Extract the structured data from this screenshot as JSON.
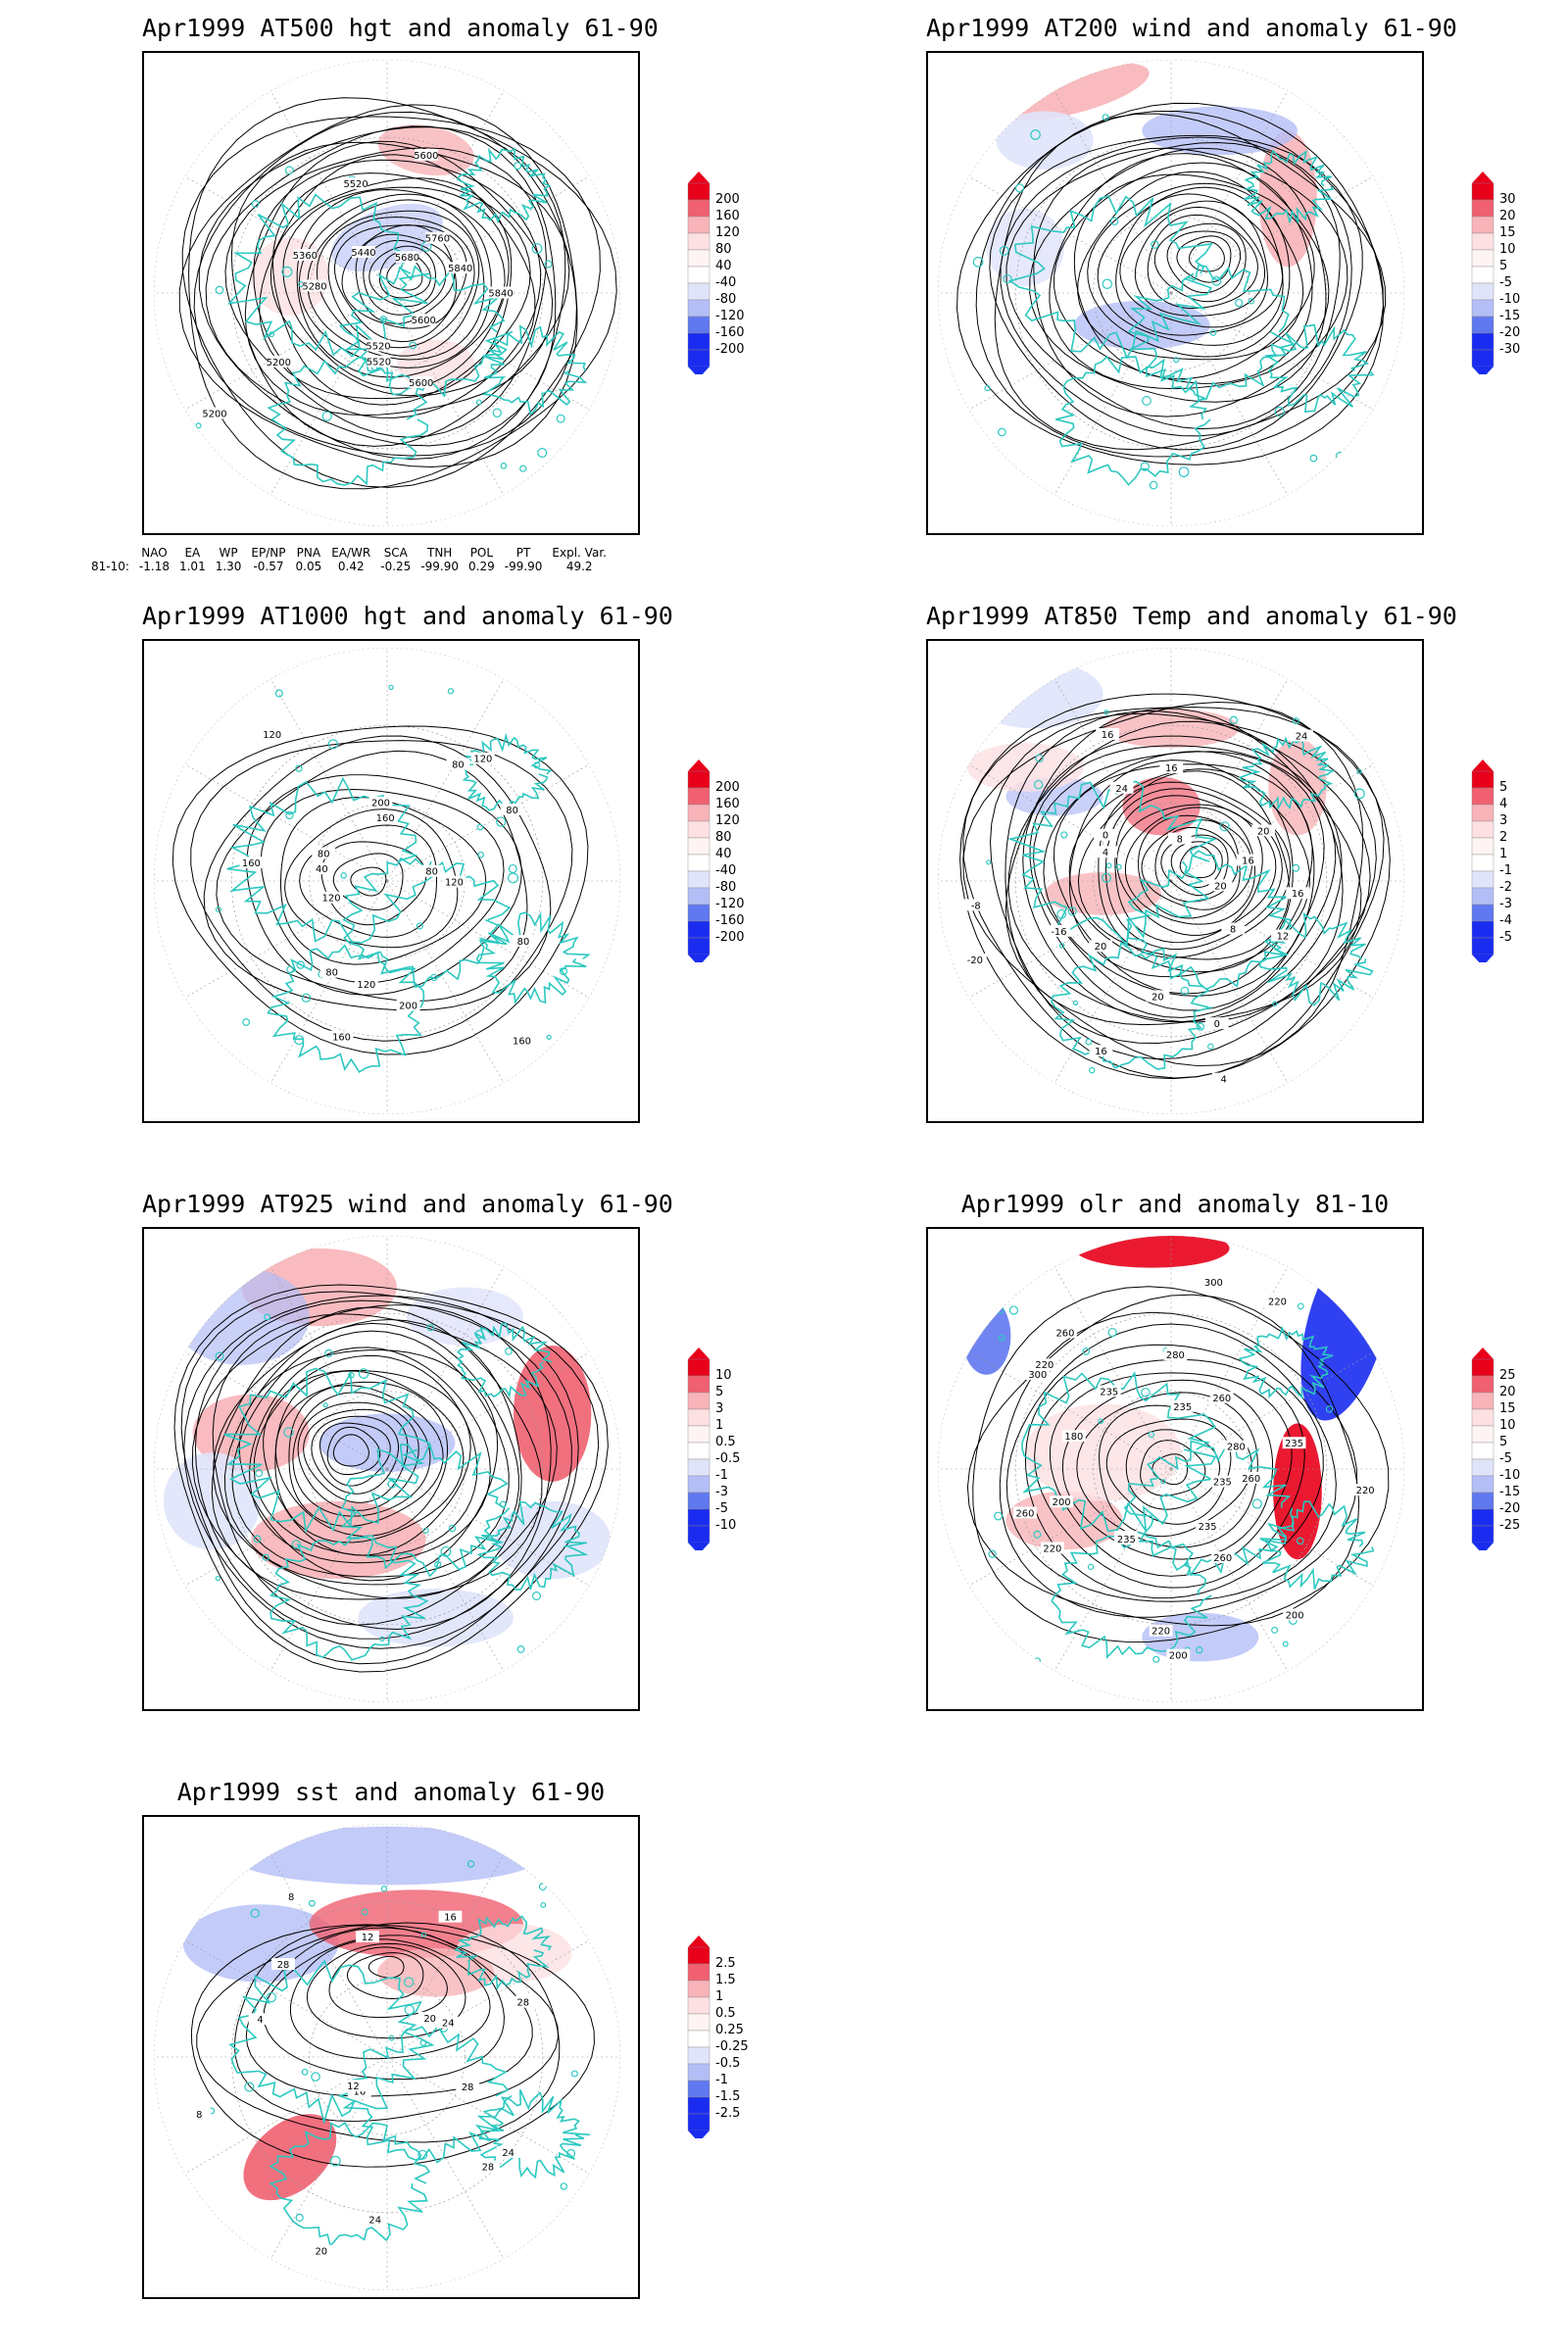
{
  "panels": [
    {
      "id": "at500",
      "title": "Apr1999 AT500 hgt and anomaly 61-90",
      "colorbar": [
        "200",
        "160",
        "120",
        "80",
        "40",
        "-40",
        "-80",
        "-120",
        "-160",
        "-200"
      ],
      "scheme": "rb",
      "contour_labels": [
        "5840",
        "5600",
        "5600",
        "5520",
        "5520",
        "5200",
        "5200",
        "5280",
        "5360",
        "5440",
        "5520",
        "5600",
        "5680",
        "5760",
        "5840"
      ]
    },
    {
      "id": "at200",
      "title": "Apr1999 AT200 wind and anomaly 61-90",
      "colorbar": [
        "30",
        "20",
        "15",
        "10",
        "5",
        "-5",
        "-10",
        "-15",
        "-20",
        "-30"
      ],
      "scheme": "rb"
    },
    {
      "id": "at1000",
      "title": "Apr1999 AT1000 hgt and anomaly 61-90",
      "colorbar": [
        "200",
        "160",
        "120",
        "80",
        "40",
        "-40",
        "-80",
        "-120",
        "-160",
        "-200"
      ],
      "scheme": "rb",
      "contour_labels": [
        "120",
        "80",
        "160",
        "200",
        "160",
        "120",
        "80",
        "120",
        "160",
        "40",
        "80",
        "120",
        "160",
        "200",
        "80",
        "120",
        "80",
        "80"
      ]
    },
    {
      "id": "at850",
      "title": "Apr1999 AT850 Temp and anomaly 61-90",
      "colorbar": [
        "5",
        "4",
        "3",
        "2",
        "1",
        "-1",
        "-2",
        "-3",
        "-4",
        "-5"
      ],
      "scheme": "rb",
      "contour_labels": [
        "16",
        "12",
        "8",
        "4",
        "0",
        "20",
        "16",
        "20",
        "-20",
        "-16",
        "-8",
        "4",
        "0",
        "16",
        "24",
        "16",
        "8",
        "24",
        "20",
        "16",
        "20"
      ]
    },
    {
      "id": "at925",
      "title": "Apr1999 AT925 wind and anomaly 61-90",
      "colorbar": [
        "10",
        "5",
        "3",
        "1",
        "0.5",
        "-0.5",
        "-1",
        "-3",
        "-5",
        "-10"
      ],
      "scheme": "rb"
    },
    {
      "id": "olr",
      "title": "Apr1999 olr and anomaly 81-10",
      "colorbar": [
        "25",
        "20",
        "15",
        "10",
        "5",
        "-5",
        "-10",
        "-15",
        "-20",
        "-25"
      ],
      "scheme": "rb",
      "contour_labels": [
        "260",
        "235",
        "200",
        "260",
        "235",
        "200",
        "220",
        "235",
        "235",
        "220",
        "260",
        "200",
        "180",
        "300",
        "220",
        "235",
        "260",
        "280",
        "300",
        "235",
        "220",
        "260",
        "280",
        "235",
        "220"
      ]
    },
    {
      "id": "sst",
      "title": "Apr1999 sst and anomaly 61-90",
      "colorbar": [
        "2.5",
        "1.5",
        "1",
        "0.5",
        "0.25",
        "-0.25",
        "-0.5",
        "-1",
        "-1.5",
        "-2.5"
      ],
      "scheme": "rb",
      "contour_labels": [
        "28",
        "24",
        "28",
        "24",
        "20",
        "16",
        "12",
        "8",
        "4",
        "28",
        "8",
        "12",
        "16",
        "20",
        "24",
        "28"
      ]
    }
  ],
  "indices": {
    "headers": [
      "NAO",
      "EA",
      "WP",
      "EP/NP",
      "PNA",
      "EA/WR",
      "SCA",
      "TNH",
      "POL",
      "PT",
      "Expl. Var."
    ],
    "row_label": "81-10:",
    "values": [
      "-1.18",
      "1.01",
      "1.30",
      "-0.57",
      "0.05",
      "0.42",
      "-0.25",
      "-99.90",
      "0.29",
      "-99.90",
      "49.2"
    ]
  },
  "colors": {
    "red_strong": "#e8001a",
    "red_mid": "#f06070",
    "red_light": "#f8b4b8",
    "red_pale": "#fde0e2",
    "blue_pale": "#e0e4fb",
    "blue_light": "#b4bef6",
    "blue_mid": "#6078f0",
    "blue_strong": "#1a2cf0",
    "land": "#2cc8c0",
    "contour": "#000000"
  }
}
